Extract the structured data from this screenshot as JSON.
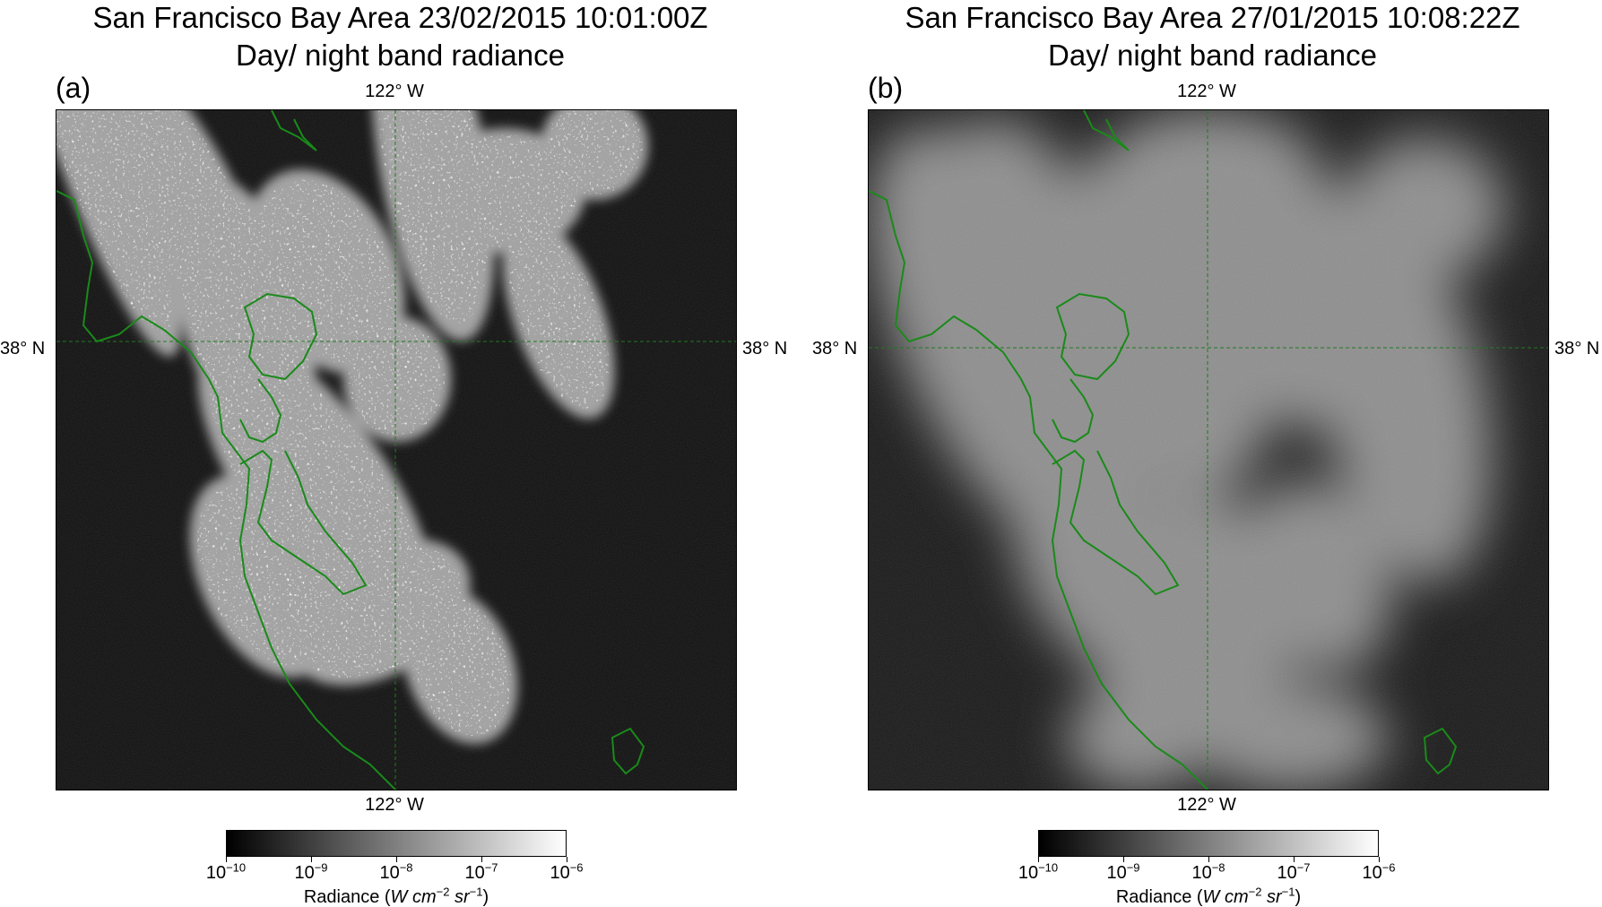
{
  "panels": [
    {
      "id": "a",
      "title_line1": "San Francisco Bay Area 23/02/2015 10:01:00Z",
      "title_line2": "Day/ night band radiance",
      "label": "(a)",
      "style": "sharp"
    },
    {
      "id": "b",
      "title_line1": "San Francisco Bay Area 27/01/2015 10:08:22Z",
      "title_line2": "Day/ night band radiance",
      "label": "(b)",
      "style": "blurred"
    }
  ],
  "gridlines": {
    "longitude_label": "122° W",
    "latitude_label": "38° N"
  },
  "colorbar": {
    "tick_base": "10",
    "tick_exponents": [
      "−10",
      "−9",
      "−8",
      "−7",
      "−6"
    ],
    "label_prefix": "Radiance (",
    "label_units": "W cm",
    "label_exp1": "−2",
    "label_mid": " sr",
    "label_exp2": "−1",
    "label_suffix": ")"
  },
  "colors": {
    "coastline": "#1a8a1a",
    "gridline": "#1f7a1f",
    "background": "#0e0e0e"
  }
}
